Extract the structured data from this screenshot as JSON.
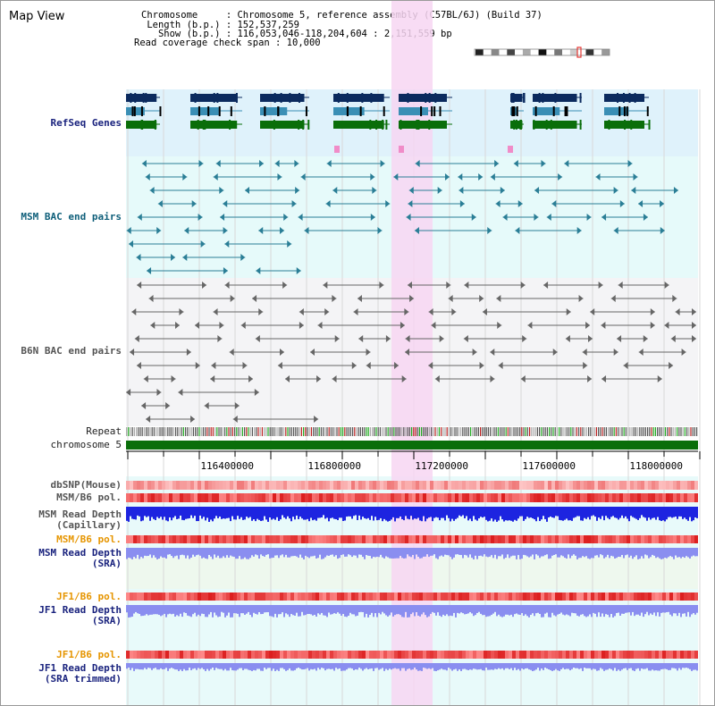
{
  "view": {
    "title": "Map View",
    "info_lines": [
      "Chromosome     : Chromosome 5, reference assembly (C57BL/6J) (Build 37)",
      " Length (b.p.) : 152,537,259",
      "   Show (b.p.) : 116,053,046-118,204,604 : 2,151,559 bp",
      "Read coverage check span : 10,000"
    ]
  },
  "ideogram": {
    "name": "chromosome-5-ideogram",
    "bands": [
      "#222",
      "#fff",
      "#888",
      "#fff",
      "#444",
      "#fff",
      "#aaa",
      "#fff",
      "#111",
      "#fff",
      "#777",
      "#fff",
      "#ccc",
      "#fff",
      "#333",
      "#fff",
      "#999"
    ],
    "highlight_color": "#e53935"
  },
  "tracks": {
    "refseq": {
      "label": "RefSeq Genes"
    },
    "msm_bac": {
      "label": "MSM BAC end pairs"
    },
    "b6n_bac": {
      "label": "B6N BAC end pairs"
    },
    "repeat": {
      "label": "Repeat"
    },
    "chromosome": {
      "label": "chromosome 5"
    },
    "dbsnp": {
      "label": "dbSNP(Mouse)"
    },
    "msm_b6_pol": {
      "label": "MSM/B6 pol."
    },
    "msm_depth_cap": {
      "label": "MSM Read Depth\n(Capillary)"
    },
    "msm_b6_pol2": {
      "label": "MSM/B6 pol."
    },
    "msm_depth_sra": {
      "label": "MSM Read Depth\n(SRA)"
    },
    "jf1_b6_pol": {
      "label": "JF1/B6 pol."
    },
    "jf1_depth_sra": {
      "label": "JF1 Read Depth\n(SRA)"
    },
    "jf1_b6_pol2": {
      "label": "JF1/B6 pol."
    },
    "jf1_depth_trim": {
      "label": "JF1 Read Depth\n(SRA trimmed)"
    }
  },
  "axis": {
    "ticks": [
      "116400000",
      "116800000",
      "117200000",
      "117600000",
      "118000000"
    ]
  },
  "colors": {
    "refseq_bg": "#dff2fb",
    "bac_bg": "#e6fafa",
    "b6n_bg": "#f4f4f6",
    "lower_bg": "#e8fafa",
    "sra_bg": "#eef8ee",
    "highlight": "#f7d6f2",
    "gene_navy": "#0b2a5e",
    "gene_teal": "#3a8fb5",
    "gene_green": "#0a6e0a",
    "msm_bac": "#2a7e96",
    "b6n_bac": "#666666",
    "chromosome_bar": "#0a6e0a",
    "depth_blue": "#1d24e0",
    "depth_lav": "#8a8ef0"
  }
}
